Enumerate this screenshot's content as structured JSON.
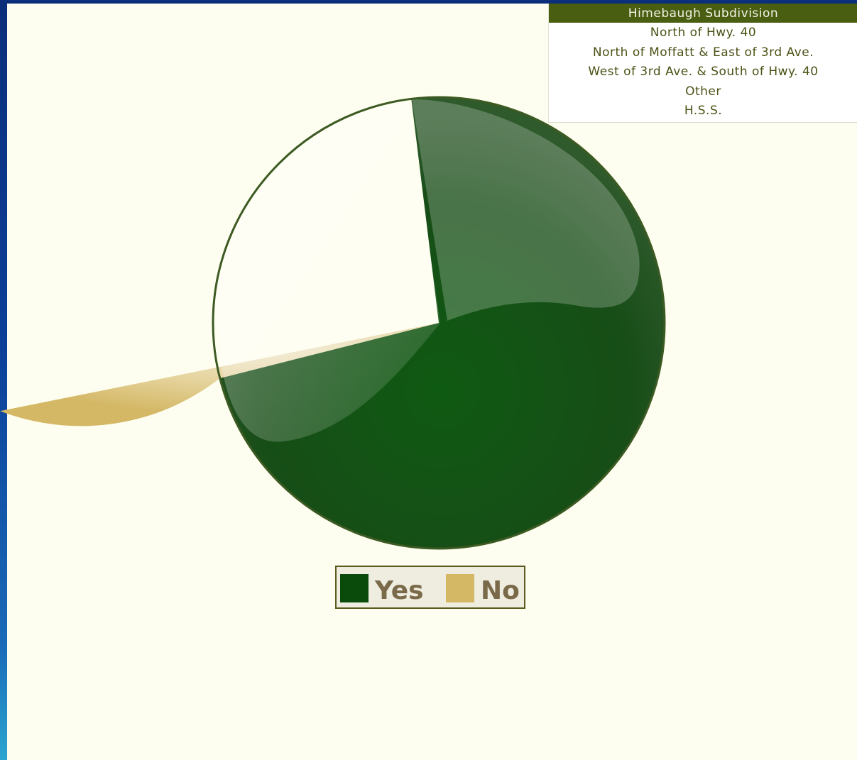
{
  "menu": {
    "header": "Himebaugh Subdivision",
    "items": [
      "North of Hwy. 40",
      "North of Moffatt & East of 3rd Ave.",
      "West of 3rd Ave. & South of Hwy. 40",
      "Other",
      "H.S.S."
    ]
  },
  "colors": {
    "yes": "#0a4a0a",
    "no": "#d4b866",
    "background": "#fefef0",
    "menu_header": "#4a5e12"
  },
  "chart_data": {
    "type": "pie",
    "title": "",
    "start_angle_deg": -97,
    "slices": [
      {
        "label": "Yes",
        "value": 73
      },
      {
        "label": "No",
        "value": 27
      }
    ],
    "legend": {
      "placement": "bottom",
      "entries": [
        "Yes",
        "No"
      ]
    }
  }
}
